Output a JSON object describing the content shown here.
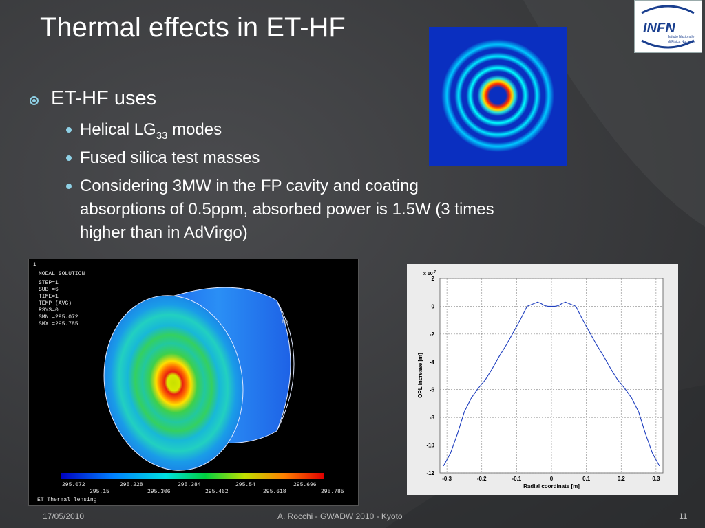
{
  "slide": {
    "title": "Thermal effects in ET-HF",
    "bullet1": "ET-HF uses",
    "sub1_pre": "Helical LG",
    "sub1_subscript": "33",
    "sub1_post": " modes",
    "sub2": "Fused silica test masses",
    "sub3_line1": "Considering 3MW in the FP cavity and coating",
    "sub3_line2": "absorptions of 0.5ppm, absorbed power is 1.5W (3 times",
    "sub3_line3": "higher than in AdVirgo)"
  },
  "logo": {
    "text": "INFN",
    "line1": "Istituto Nazionale",
    "line2": "di Fisica Nucleare"
  },
  "ansys": {
    "index": "1",
    "lines": [
      "NODAL SOLUTION",
      "STEP=1",
      "SUB =6",
      "TIME=1",
      "TEMP      (AVG)",
      "RSYS=0",
      "SMN =295.072",
      "SMX =295.785"
    ],
    "mn_label": "MN",
    "scale_top": [
      "295.072",
      "295.228",
      "295.384",
      "295.54",
      "295.696"
    ],
    "scale_bottom": [
      "295.15",
      "295.306",
      "295.462",
      "295.618",
      "295.785"
    ],
    "caption": "ET Thermal lensing"
  },
  "chart_data": {
    "type": "line",
    "title": "",
    "xlabel": "Radial coordinate [m]",
    "ylabel": "OPL increase [m]",
    "scale_note": "x 10",
    "scale_exp": "-7",
    "xlim": [
      -0.32,
      0.32
    ],
    "ylim": [
      -12,
      2
    ],
    "xticks": [
      "-0.3",
      "-0.2",
      "-0.1",
      "0",
      "0.1",
      "0.2",
      "0.3"
    ],
    "xtick_values": [
      -0.3,
      -0.2,
      -0.1,
      0,
      0.1,
      0.2,
      0.3
    ],
    "yticks": [
      "2",
      "0",
      "-2",
      "-4",
      "-6",
      "-8",
      "-10",
      "-12"
    ],
    "ytick_values": [
      2,
      0,
      -2,
      -4,
      -6,
      -8,
      -10,
      -12
    ],
    "grid": true,
    "series": [
      {
        "color": "#1f3fbf",
        "x": [
          -0.31,
          -0.29,
          -0.27,
          -0.25,
          -0.23,
          -0.21,
          -0.19,
          -0.17,
          -0.15,
          -0.13,
          -0.11,
          -0.09,
          -0.07,
          -0.05,
          -0.04,
          -0.03,
          -0.02,
          -0.01,
          0,
          0.01,
          0.02,
          0.03,
          0.04,
          0.05,
          0.07,
          0.09,
          0.11,
          0.13,
          0.15,
          0.17,
          0.19,
          0.21,
          0.23,
          0.25,
          0.27,
          0.29,
          0.31
        ],
        "y": [
          -11.5,
          -10.6,
          -9.2,
          -7.6,
          -6.6,
          -5.9,
          -5.3,
          -4.5,
          -3.6,
          -2.8,
          -1.9,
          -1.0,
          0.0,
          0.2,
          0.3,
          0.2,
          0.05,
          0.0,
          0.0,
          0.0,
          0.05,
          0.2,
          0.3,
          0.2,
          0.0,
          -1.0,
          -1.9,
          -2.8,
          -3.6,
          -4.5,
          -5.3,
          -5.9,
          -6.6,
          -7.6,
          -9.2,
          -10.6,
          -11.5
        ]
      }
    ]
  },
  "footer": {
    "date": "17/05/2010",
    "center": "A. Rocchi - GWADW 2010 - Kyoto",
    "page": "11"
  }
}
